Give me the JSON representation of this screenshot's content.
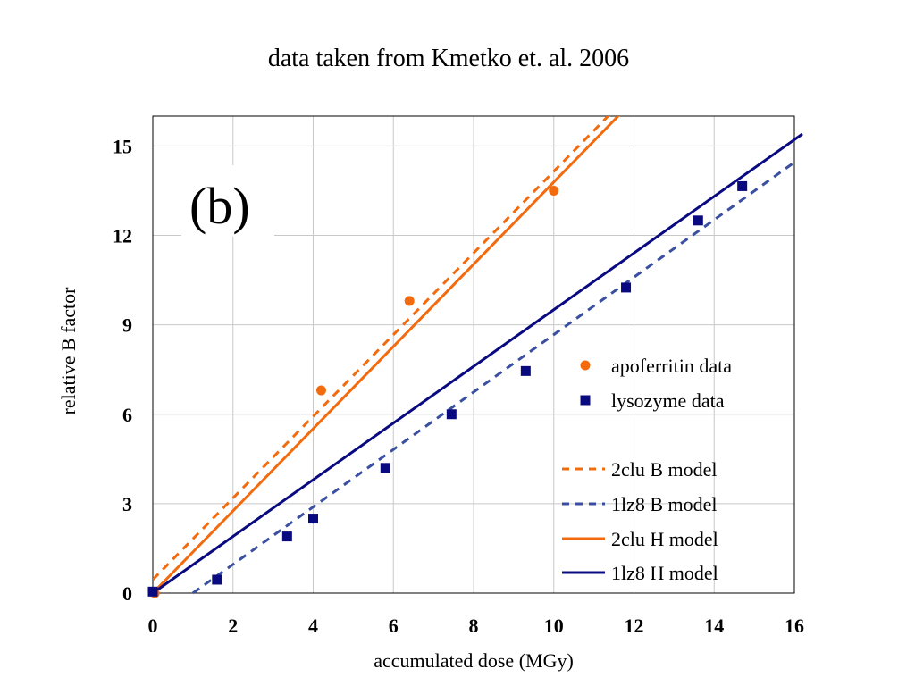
{
  "chart_data": {
    "type": "scatter",
    "title": "data taken from Kmetko et. al. 2006",
    "panel_label": "(b)",
    "xlabel": "accumulated dose (MGy)",
    "ylabel": "relative B factor",
    "xlim": [
      0,
      16
    ],
    "ylim": [
      0,
      16
    ],
    "xticks": [
      0,
      2,
      4,
      6,
      8,
      10,
      12,
      14,
      16
    ],
    "yticks": [
      0,
      3,
      6,
      9,
      12,
      15
    ],
    "grid": true,
    "legend_position": "lower-right",
    "colors": {
      "apoferritin": "#F26B0F",
      "lysozyme": "#0A0A80"
    },
    "series": [
      {
        "name": "apoferritin data",
        "kind": "points",
        "marker": "circle",
        "color": "#F26B0F",
        "x": [
          0.05,
          4.2,
          6.4,
          10.0
        ],
        "y": [
          0.0,
          6.8,
          9.8,
          13.5
        ]
      },
      {
        "name": "lysozyme data",
        "kind": "points",
        "marker": "square",
        "color": "#0A0A80",
        "x": [
          0.0,
          1.6,
          3.35,
          4.0,
          5.8,
          7.45,
          9.3,
          11.8,
          13.6,
          14.7
        ],
        "y": [
          0.05,
          0.45,
          1.9,
          2.5,
          4.2,
          6.0,
          7.45,
          10.25,
          12.5,
          13.65
        ]
      },
      {
        "name": "2clu B model",
        "kind": "line",
        "dash": true,
        "color": "#F26B0F",
        "x": [
          0,
          11.5
        ],
        "y": [
          0.45,
          16.2
        ]
      },
      {
        "name": "1lz8 B model",
        "kind": "line",
        "dash": true,
        "color": "#3A4FA0",
        "x": [
          1.0,
          16.0
        ],
        "y": [
          0.0,
          14.45
        ]
      },
      {
        "name": "2clu H model",
        "kind": "line",
        "dash": false,
        "color": "#F26B0F",
        "x": [
          0,
          11.75
        ],
        "y": [
          0.0,
          16.2
        ]
      },
      {
        "name": "1lz8 H model",
        "kind": "line",
        "dash": false,
        "color": "#0A0A80",
        "x": [
          0,
          16.2
        ],
        "y": [
          0.0,
          15.4
        ]
      }
    ]
  }
}
